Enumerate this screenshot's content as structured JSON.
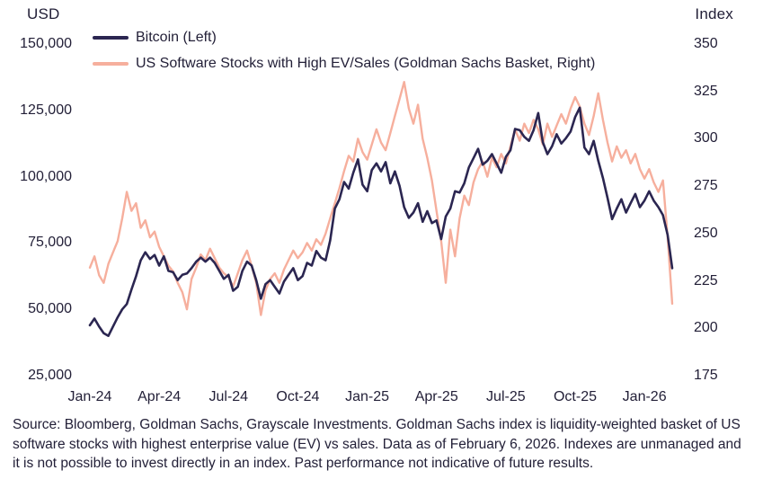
{
  "legend": [
    {
      "label": "Bitcoin (Left)",
      "color": "#2b2651"
    },
    {
      "label": "US Software Stocks with High EV/Sales (Goldman Sachs Basket, Right)",
      "color": "#f6af9d"
    }
  ],
  "footnote": "Source: Bloomberg, Goldman Sachs, Grayscale Investments. Goldman Sachs index is liquidity-weighted basket of US software stocks with highest enterprise value (EV) vs sales. Data as of February 6, 2026. Indexes are unmanaged and it is not possible to invest directly in an index. Past performance not indicative of future results.",
  "chart_data": {
    "type": "line",
    "grid": false,
    "legend_position": "top-left",
    "x_unit": "months since Jan-2024 (data through Feb 6, 2026)",
    "x_range": [
      0,
      25.2
    ],
    "x_tick_labels": [
      "Jan-24",
      "Apr-24",
      "Jul-24",
      "Oct-24",
      "Jan-25",
      "Apr-25",
      "Jul-25",
      "Oct-25",
      "Jan-26"
    ],
    "x_tick_positions": [
      0,
      3,
      6,
      9,
      12,
      15,
      18,
      21,
      24
    ],
    "left_axis": {
      "title": "USD",
      "min": 25000,
      "max": 150000,
      "tick_values": [
        150000,
        125000,
        100000,
        75000,
        50000,
        25000
      ],
      "tick_labels": [
        "150,000",
        "125,000",
        "100,000",
        "75,000",
        "50,000",
        "25,000"
      ]
    },
    "right_axis": {
      "title": "Index",
      "min": 175,
      "max": 350,
      "tick_values": [
        350,
        325,
        300,
        275,
        250,
        225,
        200,
        175
      ],
      "tick_labels": [
        "350",
        "325",
        "300",
        "275",
        "250",
        "225",
        "200",
        "175"
      ]
    },
    "x": [
      0,
      0.2,
      0.4,
      0.6,
      0.8,
      1,
      1.2,
      1.4,
      1.6,
      1.8,
      2,
      2.2,
      2.4,
      2.6,
      2.8,
      3,
      3.2,
      3.4,
      3.6,
      3.8,
      4,
      4.2,
      4.4,
      4.6,
      4.8,
      5,
      5.2,
      5.4,
      5.6,
      5.8,
      6,
      6.2,
      6.4,
      6.6,
      6.8,
      7,
      7.2,
      7.4,
      7.6,
      7.8,
      8,
      8.2,
      8.4,
      8.6,
      8.8,
      9,
      9.2,
      9.4,
      9.6,
      9.8,
      10,
      10.2,
      10.4,
      10.6,
      10.8,
      11,
      11.2,
      11.4,
      11.6,
      11.8,
      12,
      12.2,
      12.4,
      12.6,
      12.8,
      13,
      13.2,
      13.4,
      13.6,
      13.8,
      14,
      14.2,
      14.4,
      14.6,
      14.8,
      15,
      15.2,
      15.4,
      15.6,
      15.8,
      16,
      16.2,
      16.4,
      16.6,
      16.8,
      17,
      17.2,
      17.4,
      17.6,
      17.8,
      18,
      18.2,
      18.4,
      18.6,
      18.8,
      19,
      19.2,
      19.4,
      19.6,
      19.8,
      20,
      20.2,
      20.4,
      20.6,
      20.8,
      21,
      21.2,
      21.4,
      21.6,
      21.8,
      22,
      22.2,
      22.4,
      22.6,
      22.8,
      23,
      23.2,
      23.4,
      23.6,
      23.8,
      24,
      24.2,
      24.4,
      24.6,
      24.8,
      25,
      25.2
    ],
    "series": [
      {
        "name": "Bitcoin (Left)",
        "axis": "left",
        "color": "#2b2651",
        "stroke_width": 2.6,
        "data_name": "bitcoin-line",
        "values": [
          44000,
          46500,
          43500,
          41000,
          40000,
          43500,
          47000,
          50000,
          52000,
          57500,
          62500,
          68500,
          71500,
          69000,
          70500,
          66500,
          70000,
          64500,
          64000,
          61000,
          63000,
          63500,
          65500,
          68000,
          69500,
          68000,
          69500,
          67500,
          64500,
          61500,
          63000,
          57000,
          58500,
          64500,
          68000,
          66500,
          61000,
          54000,
          59500,
          61000,
          58500,
          56000,
          60500,
          63000,
          65500,
          61000,
          62500,
          67500,
          66500,
          72000,
          69500,
          68500,
          76000,
          88000,
          91500,
          98000,
          95500,
          101500,
          106500,
          97000,
          94500,
          102500,
          105000,
          102000,
          105500,
          97500,
          102000,
          96500,
          88500,
          84500,
          86500,
          90000,
          83000,
          87000,
          82500,
          83500,
          76500,
          85000,
          88000,
          94500,
          94000,
          97500,
          103500,
          107000,
          110500,
          104500,
          106000,
          108500,
          105000,
          101500,
          107500,
          110000,
          118000,
          117500,
          115000,
          113500,
          117500,
          124000,
          113000,
          108500,
          111500,
          116000,
          112500,
          114500,
          117000,
          122500,
          126000,
          111000,
          108500,
          113500,
          106000,
          99500,
          92000,
          84000,
          88000,
          91500,
          86500,
          90000,
          93500,
          88500,
          91000,
          94500,
          91000,
          88500,
          85500,
          78000,
          65500
        ]
      },
      {
        "name": "US Software Stocks with High EV/Sales (Goldman Sachs Basket, Right)",
        "axis": "right",
        "color": "#f6af9d",
        "stroke_width": 2.4,
        "data_name": "software-stocks-line",
        "values": [
          232,
          238,
          228,
          224,
          234,
          240,
          246,
          258,
          272,
          262,
          266,
          253,
          257,
          248,
          251,
          243,
          238,
          233,
          230,
          224,
          219,
          210,
          226,
          232,
          239,
          236,
          242,
          237,
          232,
          229,
          227,
          222,
          229,
          236,
          241,
          233,
          224,
          207,
          220,
          226,
          229,
          224,
          231,
          236,
          241,
          237,
          240,
          245,
          241,
          247,
          244,
          250,
          258,
          266,
          274,
          283,
          291,
          288,
          300,
          293,
          289,
          297,
          305,
          298,
          294,
          303,
          312,
          321,
          330,
          316,
          308,
          318,
          300,
          290,
          278,
          262,
          246,
          224,
          252,
          238,
          258,
          270,
          265,
          277,
          284,
          288,
          280,
          290,
          285,
          292,
          287,
          296,
          305,
          299,
          308,
          303,
          310,
          305,
          297,
          308,
          301,
          307,
          313,
          308,
          316,
          322,
          317,
          308,
          302,
          312,
          324,
          310,
          298,
          288,
          296,
          290,
          294,
          287,
          292,
          284,
          279,
          284,
          277,
          272,
          278,
          248,
          213
        ]
      }
    ]
  }
}
